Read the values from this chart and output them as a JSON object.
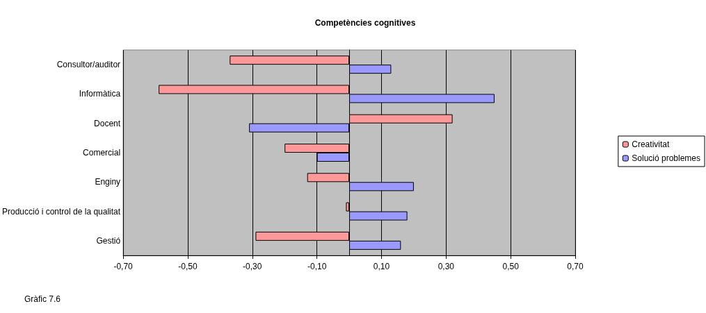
{
  "chart_data": {
    "type": "bar",
    "orientation": "horizontal",
    "title": "Competències cognitives",
    "categories": [
      "Consultor/auditor",
      "Informàtica",
      "Docent",
      "Comercial",
      "Enginy",
      "Producció i control de la qualitat",
      "Gestió"
    ],
    "series": [
      {
        "name": "Creativitat",
        "color": "#ff9999",
        "values": [
          -0.37,
          -0.59,
          0.32,
          -0.2,
          -0.13,
          -0.01,
          -0.29
        ]
      },
      {
        "name": "Solució problemes",
        "color": "#9999ff",
        "values": [
          0.13,
          0.45,
          -0.31,
          -0.1,
          0.2,
          0.18,
          0.16
        ]
      }
    ],
    "xlim": [
      -0.7,
      0.7
    ],
    "xticks": [
      {
        "value": -0.7,
        "label": "-0,70"
      },
      {
        "value": -0.5,
        "label": "-0,50"
      },
      {
        "value": -0.3,
        "label": "-0,30"
      },
      {
        "value": -0.1,
        "label": "-0,10"
      },
      {
        "value": 0.1,
        "label": "0,10"
      },
      {
        "value": 0.3,
        "label": "0,30"
      },
      {
        "value": 0.5,
        "label": "0,50"
      },
      {
        "value": 0.7,
        "label": "0,70"
      }
    ],
    "grid": "x",
    "legend": "right",
    "annotations": [
      "Gràfic 7.6"
    ]
  }
}
